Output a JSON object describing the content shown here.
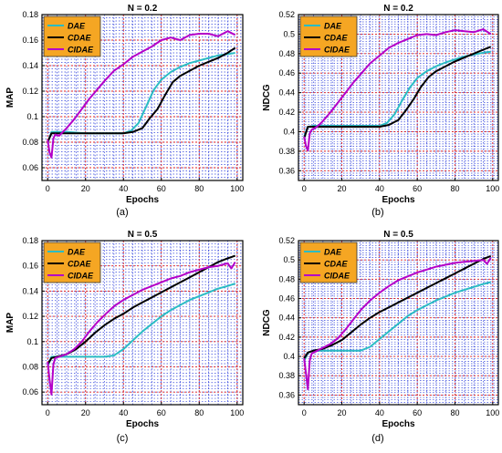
{
  "chart_data": [
    {
      "type": "line",
      "panel_label": "(a)",
      "title": "N = 0.2",
      "xlabel": "Epochs",
      "ylabel": "MAP",
      "xlim": [
        -3,
        103
      ],
      "ylim": [
        0.05,
        0.18
      ],
      "xticks": [
        0,
        20,
        40,
        60,
        80,
        100
      ],
      "yticks": [
        0.06,
        0.08,
        0.1,
        0.12,
        0.14,
        0.16,
        0.18
      ],
      "ytick_labels": [
        "0.06",
        "0.08",
        "0.1",
        "0.12",
        "0.14",
        "0.16",
        "0.18"
      ],
      "grid": true,
      "legend_position": "top-left",
      "series": [
        {
          "name": "DAE",
          "color": "#2bbcc4",
          "x": [
            0,
            2,
            5,
            10,
            20,
            30,
            40,
            44,
            48,
            52,
            56,
            60,
            65,
            70,
            75,
            80,
            85,
            90,
            95,
            99
          ],
          "y": [
            0.079,
            0.088,
            0.088,
            0.088,
            0.087,
            0.087,
            0.087,
            0.089,
            0.095,
            0.108,
            0.121,
            0.129,
            0.135,
            0.139,
            0.142,
            0.144,
            0.146,
            0.148,
            0.149,
            0.15
          ]
        },
        {
          "name": "CDAE",
          "color": "#000000",
          "x": [
            0,
            2,
            5,
            10,
            20,
            30,
            40,
            45,
            50,
            54,
            58,
            62,
            66,
            70,
            75,
            80,
            85,
            90,
            95,
            99
          ],
          "y": [
            0.08,
            0.087,
            0.087,
            0.087,
            0.087,
            0.087,
            0.087,
            0.088,
            0.091,
            0.099,
            0.106,
            0.117,
            0.127,
            0.132,
            0.136,
            0.14,
            0.143,
            0.146,
            0.15,
            0.154
          ]
        },
        {
          "name": "CIDAE",
          "color": "#b400c8",
          "x": [
            0,
            1,
            2,
            3,
            4,
            6,
            8,
            10,
            14,
            18,
            22,
            26,
            30,
            35,
            40,
            45,
            50,
            55,
            60,
            65,
            70,
            75,
            80,
            85,
            90,
            95,
            99
          ],
          "y": [
            0.082,
            0.072,
            0.068,
            0.083,
            0.086,
            0.085,
            0.088,
            0.091,
            0.098,
            0.106,
            0.114,
            0.121,
            0.128,
            0.136,
            0.141,
            0.147,
            0.151,
            0.155,
            0.16,
            0.162,
            0.16,
            0.164,
            0.165,
            0.165,
            0.163,
            0.167,
            0.164
          ]
        }
      ]
    },
    {
      "type": "line",
      "panel_label": "(b)",
      "title": "N = 0.2",
      "xlabel": "Epochs",
      "ylabel": "NDCG",
      "xlim": [
        -3,
        103
      ],
      "ylim": [
        0.35,
        0.52
      ],
      "xticks": [
        0,
        20,
        40,
        60,
        80,
        100
      ],
      "yticks": [
        0.36,
        0.38,
        0.4,
        0.42,
        0.44,
        0.46,
        0.48,
        0.5,
        0.52
      ],
      "ytick_labels": [
        "0.36",
        "0.38",
        "0.4",
        "0.42",
        "0.44",
        "0.46",
        "0.48",
        "0.5",
        "0.52"
      ],
      "grid": true,
      "legend_position": "top-left",
      "series": [
        {
          "name": "DAE",
          "color": "#2bbcc4",
          "x": [
            0,
            2,
            5,
            10,
            20,
            30,
            40,
            44,
            48,
            52,
            56,
            60,
            65,
            70,
            75,
            80,
            85,
            90,
            95,
            99
          ],
          "y": [
            0.395,
            0.405,
            0.406,
            0.406,
            0.406,
            0.406,
            0.406,
            0.409,
            0.418,
            0.432,
            0.445,
            0.455,
            0.462,
            0.467,
            0.471,
            0.474,
            0.477,
            0.479,
            0.481,
            0.482
          ]
        },
        {
          "name": "CDAE",
          "color": "#000000",
          "x": [
            0,
            2,
            5,
            10,
            20,
            30,
            40,
            45,
            50,
            54,
            58,
            62,
            66,
            70,
            75,
            80,
            85,
            90,
            95,
            99
          ],
          "y": [
            0.393,
            0.405,
            0.405,
            0.405,
            0.405,
            0.405,
            0.405,
            0.407,
            0.412,
            0.422,
            0.433,
            0.446,
            0.456,
            0.462,
            0.467,
            0.472,
            0.476,
            0.48,
            0.484,
            0.487
          ]
        },
        {
          "name": "CIDAE",
          "color": "#b400c8",
          "x": [
            0,
            1,
            2,
            3,
            4,
            6,
            8,
            10,
            14,
            18,
            22,
            26,
            30,
            35,
            40,
            45,
            50,
            55,
            60,
            65,
            70,
            75,
            80,
            85,
            90,
            95,
            99
          ],
          "y": [
            0.395,
            0.385,
            0.381,
            0.398,
            0.402,
            0.404,
            0.407,
            0.411,
            0.42,
            0.43,
            0.44,
            0.45,
            0.459,
            0.47,
            0.478,
            0.486,
            0.491,
            0.495,
            0.499,
            0.5,
            0.499,
            0.502,
            0.504,
            0.503,
            0.502,
            0.505,
            0.5
          ]
        }
      ]
    },
    {
      "type": "line",
      "panel_label": "(c)",
      "title": "N = 0.5",
      "xlabel": "Epochs",
      "ylabel": "MAP",
      "xlim": [
        -3,
        103
      ],
      "ylim": [
        0.05,
        0.18
      ],
      "xticks": [
        0,
        20,
        40,
        60,
        80,
        100
      ],
      "yticks": [
        0.06,
        0.08,
        0.1,
        0.12,
        0.14,
        0.16,
        0.18
      ],
      "ytick_labels": [
        "0.06",
        "0.08",
        "0.1",
        "0.12",
        "0.14",
        "0.16",
        "0.18"
      ],
      "grid": true,
      "legend_position": "top-left",
      "series": [
        {
          "name": "DAE",
          "color": "#2bbcc4",
          "x": [
            0,
            2,
            5,
            10,
            15,
            20,
            25,
            30,
            35,
            40,
            45,
            50,
            55,
            60,
            65,
            70,
            75,
            80,
            85,
            90,
            95,
            99
          ],
          "y": [
            0.08,
            0.088,
            0.088,
            0.088,
            0.088,
            0.088,
            0.088,
            0.088,
            0.089,
            0.094,
            0.101,
            0.108,
            0.114,
            0.12,
            0.125,
            0.129,
            0.133,
            0.136,
            0.139,
            0.142,
            0.144,
            0.146
          ]
        },
        {
          "name": "CDAE",
          "color": "#000000",
          "x": [
            0,
            2,
            5,
            10,
            15,
            20,
            25,
            30,
            35,
            40,
            45,
            50,
            55,
            60,
            65,
            70,
            75,
            80,
            85,
            90,
            95,
            99
          ],
          "y": [
            0.082,
            0.087,
            0.088,
            0.09,
            0.094,
            0.1,
            0.107,
            0.113,
            0.118,
            0.122,
            0.127,
            0.131,
            0.135,
            0.139,
            0.143,
            0.147,
            0.151,
            0.155,
            0.159,
            0.163,
            0.166,
            0.168
          ]
        },
        {
          "name": "CIDAE",
          "color": "#b400c8",
          "x": [
            0,
            1,
            2,
            3,
            4,
            6,
            8,
            10,
            14,
            18,
            22,
            26,
            30,
            35,
            40,
            45,
            50,
            55,
            60,
            65,
            70,
            75,
            80,
            85,
            90,
            95,
            97,
            99
          ],
          "y": [
            0.084,
            0.07,
            0.058,
            0.082,
            0.087,
            0.088,
            0.089,
            0.09,
            0.094,
            0.1,
            0.108,
            0.115,
            0.121,
            0.128,
            0.133,
            0.137,
            0.141,
            0.144,
            0.147,
            0.15,
            0.152,
            0.155,
            0.157,
            0.159,
            0.16,
            0.162,
            0.158,
            0.163
          ]
        }
      ]
    },
    {
      "type": "line",
      "panel_label": "(d)",
      "title": "N = 0.5",
      "xlabel": "Epochs",
      "ylabel": "NDCG",
      "xlim": [
        -3,
        103
      ],
      "ylim": [
        0.35,
        0.52
      ],
      "xticks": [
        0,
        20,
        40,
        60,
        80,
        100
      ],
      "yticks": [
        0.36,
        0.38,
        0.4,
        0.42,
        0.44,
        0.46,
        0.48,
        0.5,
        0.52
      ],
      "ytick_labels": [
        "0.36",
        "0.38",
        "0.4",
        "0.42",
        "0.44",
        "0.46",
        "0.48",
        "0.5",
        "0.52"
      ],
      "grid": true,
      "legend_position": "top-left",
      "series": [
        {
          "name": "DAE",
          "color": "#2bbcc4",
          "x": [
            0,
            2,
            5,
            10,
            15,
            20,
            25,
            30,
            35,
            40,
            45,
            50,
            55,
            60,
            65,
            70,
            75,
            80,
            85,
            90,
            95,
            99
          ],
          "y": [
            0.395,
            0.404,
            0.406,
            0.406,
            0.406,
            0.406,
            0.406,
            0.406,
            0.41,
            0.418,
            0.426,
            0.434,
            0.442,
            0.448,
            0.453,
            0.458,
            0.462,
            0.466,
            0.469,
            0.472,
            0.475,
            0.477
          ]
        },
        {
          "name": "CDAE",
          "color": "#000000",
          "x": [
            0,
            2,
            5,
            10,
            15,
            20,
            25,
            30,
            35,
            40,
            45,
            50,
            55,
            60,
            65,
            70,
            75,
            80,
            85,
            90,
            95,
            99
          ],
          "y": [
            0.398,
            0.404,
            0.406,
            0.408,
            0.412,
            0.417,
            0.425,
            0.433,
            0.44,
            0.446,
            0.451,
            0.456,
            0.461,
            0.466,
            0.471,
            0.476,
            0.481,
            0.486,
            0.491,
            0.496,
            0.501,
            0.504
          ]
        },
        {
          "name": "CIDAE",
          "color": "#b400c8",
          "x": [
            0,
            1,
            2,
            3,
            4,
            6,
            8,
            10,
            14,
            18,
            22,
            26,
            30,
            35,
            40,
            45,
            50,
            55,
            60,
            65,
            70,
            75,
            80,
            85,
            90,
            95,
            97,
            99
          ],
          "y": [
            0.398,
            0.382,
            0.366,
            0.396,
            0.403,
            0.405,
            0.407,
            0.409,
            0.413,
            0.419,
            0.428,
            0.438,
            0.448,
            0.458,
            0.466,
            0.473,
            0.479,
            0.483,
            0.487,
            0.49,
            0.493,
            0.495,
            0.497,
            0.498,
            0.499,
            0.5,
            0.496,
            0.502
          ]
        }
      ]
    }
  ]
}
